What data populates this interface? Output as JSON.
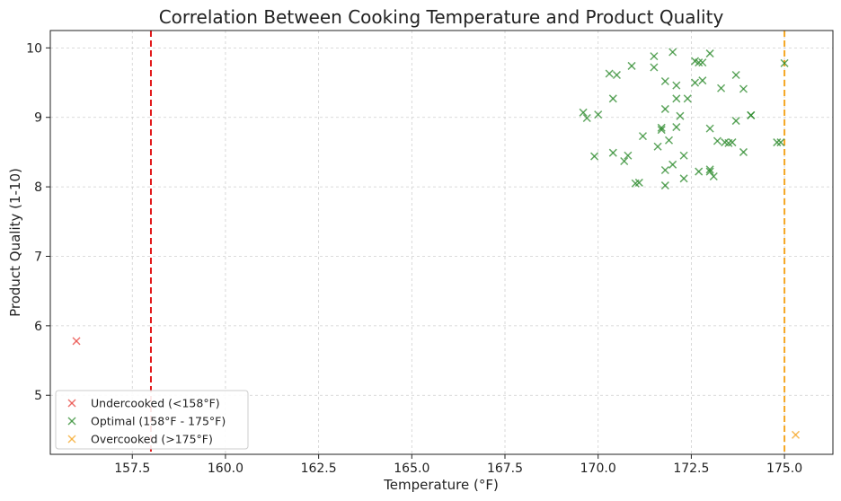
{
  "chart_data": {
    "type": "scatter",
    "title": "Correlation Between Cooking Temperature and Product Quality",
    "xlabel": "Temperature (°F)",
    "ylabel": "Product Quality (1-10)",
    "xlim": [
      155.3,
      176.3
    ],
    "ylim": [
      4.15,
      10.25
    ],
    "xticks": [
      157.5,
      160.0,
      162.5,
      165.0,
      167.5,
      170.0,
      172.5,
      175.0
    ],
    "xtick_labels": [
      "157.5",
      "160.0",
      "162.5",
      "165.0",
      "167.5",
      "170.0",
      "172.5",
      "175.0"
    ],
    "yticks": [
      5,
      6,
      7,
      8,
      9,
      10
    ],
    "ytick_labels": [
      "5",
      "6",
      "7",
      "8",
      "9",
      "10"
    ],
    "grid": true,
    "legend_position": "lower-left",
    "marker": "x",
    "series": [
      {
        "name": "Undercooked (<158°F)",
        "color": "#e8413c",
        "points": [
          [
            156.0,
            5.78
          ]
        ]
      },
      {
        "name": "Optimal (158°F - 175°F)",
        "color": "#2e8b2e",
        "points": [
          [
            169.6,
            9.07
          ],
          [
            169.7,
            8.99
          ],
          [
            169.9,
            8.44
          ],
          [
            170.0,
            9.04
          ],
          [
            170.3,
            9.63
          ],
          [
            170.4,
            9.27
          ],
          [
            170.4,
            8.49
          ],
          [
            170.5,
            9.61
          ],
          [
            170.7,
            8.37
          ],
          [
            170.8,
            8.45
          ],
          [
            170.9,
            9.74
          ],
          [
            171.0,
            8.05
          ],
          [
            171.1,
            8.06
          ],
          [
            171.2,
            8.73
          ],
          [
            171.5,
            9.88
          ],
          [
            171.5,
            9.72
          ],
          [
            171.6,
            8.58
          ],
          [
            171.7,
            8.85
          ],
          [
            171.7,
            8.82
          ],
          [
            171.8,
            8.24
          ],
          [
            171.8,
            9.52
          ],
          [
            171.8,
            9.12
          ],
          [
            171.8,
            8.02
          ],
          [
            171.9,
            8.67
          ],
          [
            172.0,
            9.94
          ],
          [
            172.0,
            8.32
          ],
          [
            172.1,
            8.86
          ],
          [
            172.1,
            9.46
          ],
          [
            172.1,
            9.27
          ],
          [
            172.2,
            9.02
          ],
          [
            172.3,
            8.12
          ],
          [
            172.3,
            8.45
          ],
          [
            172.4,
            9.27
          ],
          [
            172.6,
            9.81
          ],
          [
            172.6,
            9.5
          ],
          [
            172.7,
            8.22
          ],
          [
            172.7,
            9.79
          ],
          [
            172.8,
            9.79
          ],
          [
            172.8,
            9.53
          ],
          [
            173.0,
            8.25
          ],
          [
            173.0,
            8.22
          ],
          [
            173.0,
            9.92
          ],
          [
            173.0,
            8.84
          ],
          [
            173.1,
            8.15
          ],
          [
            173.2,
            8.66
          ],
          [
            173.3,
            9.42
          ],
          [
            173.4,
            8.64
          ],
          [
            173.5,
            8.63
          ],
          [
            173.6,
            8.64
          ],
          [
            173.7,
            8.95
          ],
          [
            173.7,
            9.61
          ],
          [
            173.9,
            9.41
          ],
          [
            173.9,
            8.5
          ],
          [
            174.1,
            9.03
          ],
          [
            174.1,
            9.03
          ],
          [
            174.8,
            8.64
          ],
          [
            174.9,
            8.64
          ],
          [
            175.0,
            9.78
          ]
        ]
      },
      {
        "name": "Overcooked (>175°F)",
        "color": "#f5a623",
        "points": [
          [
            175.3,
            4.43
          ]
        ]
      }
    ],
    "reference_lines": [
      {
        "x": 158.0,
        "color": "#e31a1c",
        "style": "dashed"
      },
      {
        "x": 175.0,
        "color": "#f5a623",
        "style": "dashed"
      }
    ]
  }
}
